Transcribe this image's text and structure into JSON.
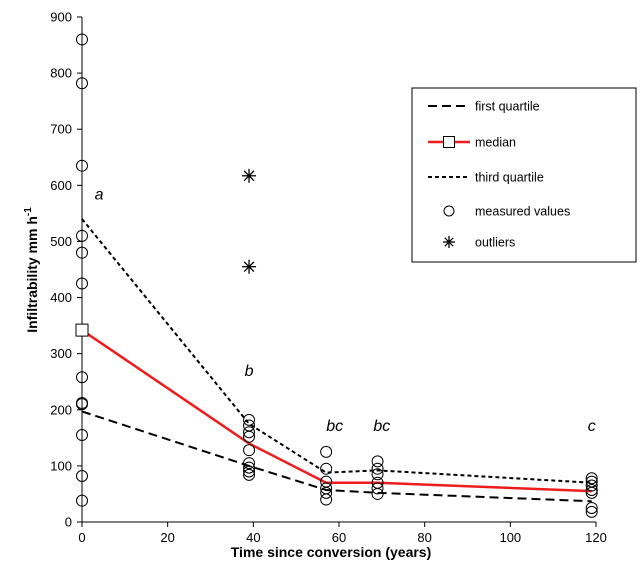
{
  "chart_data": {
    "type": "line",
    "xlabel": "Time since conversion (years)",
    "ylabel_main": "Infiltrability mm h",
    "ylabel_sup": "-1",
    "xlim": [
      0,
      120
    ],
    "ylim": [
      0,
      900
    ],
    "x_ticks": [
      "0",
      "20",
      "40",
      "60",
      "80",
      "100",
      "120"
    ],
    "y_ticks": [
      "0",
      "100",
      "200",
      "300",
      "400",
      "500",
      "600",
      "700",
      "800",
      "900"
    ],
    "grid": false,
    "legend_position": "right",
    "x": [
      0,
      39,
      57,
      69,
      119
    ],
    "series": [
      {
        "name": "first quartile",
        "style": "dashed",
        "color": "#000000",
        "values": [
          197,
          100,
          57,
          52,
          37
        ]
      },
      {
        "name": "median",
        "style": "solid",
        "marker": "square",
        "color": "#ee1c1c",
        "values": [
          342,
          140,
          70,
          70,
          55
        ]
      },
      {
        "name": "third quartile",
        "style": "dotted",
        "color": "#000000",
        "values": [
          540,
          175,
          88,
          92,
          70
        ]
      }
    ],
    "measured": {
      "name": "measured values",
      "marker": "circle",
      "points": [
        [
          0,
          860
        ],
        [
          0,
          782
        ],
        [
          0,
          635
        ],
        [
          0,
          510
        ],
        [
          0,
          480
        ],
        [
          0,
          425
        ],
        [
          0,
          258
        ],
        [
          0,
          212
        ],
        [
          0,
          210
        ],
        [
          0,
          155
        ],
        [
          0,
          82
        ],
        [
          0,
          38
        ],
        [
          39,
          182
        ],
        [
          39,
          172
        ],
        [
          39,
          160
        ],
        [
          39,
          152
        ],
        [
          39,
          128
        ],
        [
          39,
          105
        ],
        [
          39,
          97
        ],
        [
          39,
          90
        ],
        [
          39,
          84
        ],
        [
          57,
          125
        ],
        [
          57,
          95
        ],
        [
          57,
          72
        ],
        [
          57,
          60
        ],
        [
          57,
          52
        ],
        [
          57,
          40
        ],
        [
          69,
          108
        ],
        [
          69,
          95
        ],
        [
          69,
          85
        ],
        [
          69,
          70
        ],
        [
          69,
          60
        ],
        [
          69,
          50
        ],
        [
          119,
          78
        ],
        [
          119,
          72
        ],
        [
          119,
          65
        ],
        [
          119,
          57
        ],
        [
          119,
          52
        ],
        [
          119,
          25
        ],
        [
          119,
          18
        ]
      ]
    },
    "outliers": {
      "name": "outliers",
      "marker": "asterisk",
      "points": [
        [
          39,
          617
        ],
        [
          39,
          455
        ]
      ]
    },
    "annotations": [
      {
        "text": "a",
        "x": 4,
        "y": 575
      },
      {
        "text": "b",
        "x": 39,
        "y": 260
      },
      {
        "text": "bc",
        "x": 59,
        "y": 162
      },
      {
        "text": "bc",
        "x": 70,
        "y": 162
      },
      {
        "text": "c",
        "x": 119,
        "y": 162
      }
    ]
  }
}
